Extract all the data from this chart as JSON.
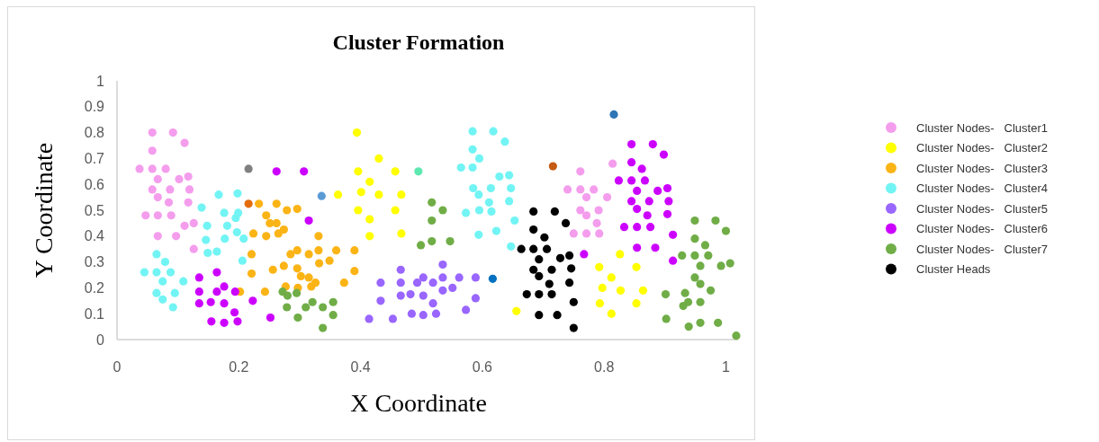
{
  "chart_data": {
    "type": "scatter",
    "title": "Cluster Formation",
    "xlabel": "X Coordinate",
    "ylabel": "Y Coordinate",
    "xlim": [
      0,
      1.02
    ],
    "xticks": [
      0,
      0.2,
      0.4,
      0.6,
      0.8,
      1
    ],
    "ylim": [
      0,
      1
    ],
    "yticks": [
      0,
      0.1,
      0.2,
      0.3,
      0.4,
      0.5,
      0.6,
      0.7,
      0.8,
      0.9,
      1
    ],
    "grid": false,
    "legend": "right",
    "marker": "circle",
    "series": [
      {
        "name": "Cluster Nodes-   Cluster1",
        "color": "#f49ded",
        "x": [
          0.058,
          0.092,
          0.111,
          0.058,
          0.037,
          0.058,
          0.08,
          0.067,
          0.102,
          0.117,
          0.058,
          0.087,
          0.119,
          0.067,
          0.085,
          0.117,
          0.047,
          0.067,
          0.089,
          0.111,
          0.126,
          0.067,
          0.097,
          0.126,
          0.814,
          0.761,
          0.74,
          0.761,
          0.783,
          0.771,
          0.805,
          0.761,
          0.791,
          0.771,
          0.788,
          0.75,
          0.771,
          0.792
        ],
        "values": [
          0.8,
          0.8,
          0.76,
          0.73,
          0.66,
          0.66,
          0.66,
          0.62,
          0.62,
          0.63,
          0.58,
          0.58,
          0.58,
          0.55,
          0.53,
          0.53,
          0.48,
          0.48,
          0.48,
          0.44,
          0.45,
          0.4,
          0.4,
          0.35,
          0.68,
          0.65,
          0.58,
          0.58,
          0.58,
          0.55,
          0.55,
          0.5,
          0.5,
          0.48,
          0.45,
          0.41,
          0.41,
          0.41
        ]
      },
      {
        "name": "Cluster Nodes-   Cluster2",
        "color": "#ffff00",
        "x": [
          0.394,
          0.43,
          0.396,
          0.457,
          0.415,
          0.363,
          0.401,
          0.43,
          0.467,
          0.396,
          0.457,
          0.415,
          0.415,
          0.467,
          0.826,
          0.792,
          0.853,
          0.812,
          0.797,
          0.827,
          0.864,
          0.793,
          0.853,
          0.812,
          0.656
        ],
        "values": [
          0.8,
          0.7,
          0.65,
          0.65,
          0.61,
          0.56,
          0.57,
          0.56,
          0.56,
          0.5,
          0.5,
          0.465,
          0.4,
          0.41,
          0.33,
          0.28,
          0.28,
          0.24,
          0.2,
          0.19,
          0.19,
          0.14,
          0.14,
          0.1,
          0.11
        ]
      },
      {
        "name": "Cluster Nodes-   Cluster3",
        "color": "#fbb416",
        "x": [
          0.233,
          0.262,
          0.279,
          0.296,
          0.245,
          0.251,
          0.262,
          0.274,
          0.265,
          0.224,
          0.245,
          0.331,
          0.296,
          0.285,
          0.315,
          0.331,
          0.36,
          0.39,
          0.221,
          0.332,
          0.349,
          0.256,
          0.274,
          0.296,
          0.221,
          0.302,
          0.315,
          0.326,
          0.319,
          0.39,
          0.373,
          0.277,
          0.297,
          0.243,
          0.202
        ],
        "values": [
          0.525,
          0.525,
          0.5,
          0.505,
          0.48,
          0.45,
          0.45,
          0.425,
          0.41,
          0.41,
          0.4,
          0.4,
          0.345,
          0.33,
          0.33,
          0.345,
          0.345,
          0.345,
          0.33,
          0.295,
          0.305,
          0.27,
          0.285,
          0.275,
          0.255,
          0.245,
          0.24,
          0.22,
          0.205,
          0.265,
          0.22,
          0.205,
          0.2,
          0.185,
          0.185
        ]
      },
      {
        "name": "Cluster Nodes-   Cluster4",
        "color": "#72f4f4",
        "x": [
          0.139,
          0.167,
          0.198,
          0.176,
          0.199,
          0.195,
          0.148,
          0.181,
          0.197,
          0.208,
          0.146,
          0.177,
          0.149,
          0.164,
          0.206,
          0.065,
          0.079,
          0.045,
          0.065,
          0.088,
          0.075,
          0.109,
          0.065,
          0.095,
          0.075,
          0.092,
          0.584,
          0.618,
          0.584,
          0.595,
          0.565,
          0.584,
          0.585,
          0.594,
          0.611,
          0.573,
          0.595,
          0.637,
          0.628,
          0.644,
          0.614,
          0.647,
          0.644,
          0.615,
          0.653,
          0.623,
          0.647,
          0.594
        ],
        "values": [
          0.51,
          0.56,
          0.565,
          0.49,
          0.49,
          0.47,
          0.44,
          0.44,
          0.415,
          0.39,
          0.385,
          0.39,
          0.335,
          0.34,
          0.305,
          0.33,
          0.3,
          0.26,
          0.26,
          0.26,
          0.225,
          0.225,
          0.18,
          0.18,
          0.155,
          0.125,
          0.805,
          0.805,
          0.735,
          0.7,
          0.665,
          0.665,
          0.585,
          0.56,
          0.53,
          0.49,
          0.5,
          0.765,
          0.63,
          0.635,
          0.585,
          0.585,
          0.535,
          0.495,
          0.46,
          0.42,
          0.36,
          0.405
        ]
      },
      {
        "name": "Cluster Nodes-   Cluster5",
        "color": "#9966ff",
        "x": [
          0.535,
          0.466,
          0.433,
          0.466,
          0.493,
          0.503,
          0.519,
          0.535,
          0.562,
          0.589,
          0.551,
          0.535,
          0.433,
          0.466,
          0.482,
          0.503,
          0.519,
          0.589,
          0.573,
          0.484,
          0.503,
          0.524,
          0.414,
          0.453
        ],
        "values": [
          0.29,
          0.27,
          0.22,
          0.22,
          0.22,
          0.24,
          0.22,
          0.24,
          0.24,
          0.24,
          0.2,
          0.19,
          0.15,
          0.17,
          0.175,
          0.17,
          0.14,
          0.16,
          0.115,
          0.1,
          0.095,
          0.1,
          0.08,
          0.08
        ]
      },
      {
        "name": "Cluster Nodes-   Cluster6",
        "color": "#cc00ff",
        "x": [
          0.135,
          0.164,
          0.135,
          0.164,
          0.176,
          0.194,
          0.135,
          0.154,
          0.176,
          0.193,
          0.155,
          0.176,
          0.198,
          0.315,
          0.223,
          0.252,
          0.262,
          0.307,
          0.845,
          0.88,
          0.898,
          0.845,
          0.862,
          0.824,
          0.845,
          0.867,
          0.854,
          0.888,
          0.904,
          0.845,
          0.874,
          0.906,
          0.854,
          0.871,
          0.904,
          0.833,
          0.854,
          0.876,
          0.913,
          0.854,
          0.884,
          0.913,
          0.767
        ],
        "values": [
          0.24,
          0.26,
          0.185,
          0.185,
          0.205,
          0.185,
          0.14,
          0.145,
          0.14,
          0.105,
          0.07,
          0.065,
          0.07,
          0.46,
          0.15,
          0.085,
          0.65,
          0.65,
          0.755,
          0.755,
          0.715,
          0.685,
          0.66,
          0.615,
          0.615,
          0.615,
          0.575,
          0.575,
          0.585,
          0.535,
          0.535,
          0.535,
          0.505,
          0.48,
          0.485,
          0.435,
          0.435,
          0.435,
          0.405,
          0.355,
          0.355,
          0.305,
          0.33
        ]
      },
      {
        "name": "Cluster Nodes-   Cluster7",
        "color": "#70ad47",
        "x": [
          0.517,
          0.535,
          0.517,
          0.499,
          0.517,
          0.547,
          0.272,
          0.28,
          0.295,
          0.279,
          0.31,
          0.321,
          0.338,
          0.355,
          0.297,
          0.355,
          0.338,
          0.949,
          0.983,
          1.0,
          0.949,
          0.966,
          0.928,
          0.949,
          0.971,
          0.958,
          0.992,
          1.007,
          0.949,
          0.958,
          0.975,
          0.901,
          0.933,
          0.938,
          0.93,
          0.958,
          0.902,
          0.939,
          0.958,
          0.987,
          1.017
        ],
        "values": [
          0.53,
          0.5,
          0.46,
          0.365,
          0.38,
          0.38,
          0.185,
          0.17,
          0.18,
          0.125,
          0.125,
          0.145,
          0.125,
          0.145,
          0.085,
          0.095,
          0.045,
          0.46,
          0.46,
          0.42,
          0.39,
          0.365,
          0.325,
          0.325,
          0.325,
          0.285,
          0.285,
          0.295,
          0.24,
          0.215,
          0.19,
          0.175,
          0.18,
          0.145,
          0.13,
          0.145,
          0.08,
          0.05,
          0.065,
          0.065,
          0.015
        ]
      },
      {
        "name": "Cluster Heads",
        "color": "#000000",
        "x": [
          0.684,
          0.719,
          0.737,
          0.684,
          0.702,
          0.664,
          0.684,
          0.706,
          0.693,
          0.728,
          0.743,
          0.684,
          0.714,
          0.746,
          0.693,
          0.71,
          0.743,
          0.673,
          0.693,
          0.714,
          0.75,
          0.693,
          0.723,
          0.75
        ],
        "values": [
          0.495,
          0.495,
          0.45,
          0.425,
          0.395,
          0.35,
          0.35,
          0.35,
          0.31,
          0.315,
          0.325,
          0.27,
          0.27,
          0.275,
          0.245,
          0.215,
          0.22,
          0.175,
          0.175,
          0.175,
          0.145,
          0.095,
          0.095,
          0.045
        ]
      },
      {
        "colors": [
          "#808080",
          "#e46c0a",
          "#5b9bd5",
          "#5ee8b0",
          "#c55a11",
          "#2e75b6",
          "#0070c0"
        ],
        "x": [
          0.216,
          0.216,
          0.336,
          0.495,
          0.716,
          0.816,
          0.617
        ],
        "values": [
          0.66,
          0.525,
          0.555,
          0.65,
          0.67,
          0.87,
          0.235
        ]
      }
    ]
  }
}
